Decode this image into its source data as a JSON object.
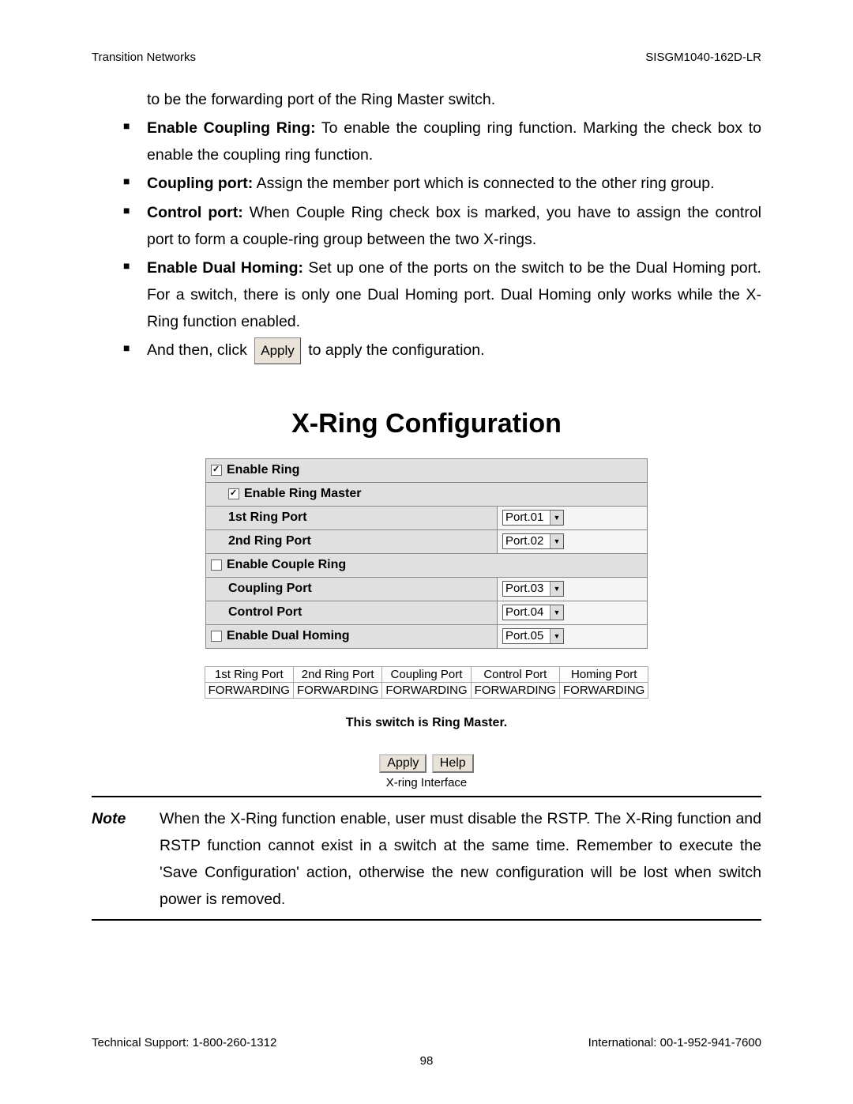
{
  "header": {
    "left": "Transition Networks",
    "right": "SISGM1040-162D-LR"
  },
  "intro": "to be the forwarding port of the Ring Master switch.",
  "bullets": [
    {
      "bold": "Enable Coupling Ring:",
      "rest": " To enable the coupling ring function. Marking the check box to enable the coupling ring function."
    },
    {
      "bold": "Coupling port:",
      "rest": " Assign the member port which is connected to the other ring group."
    },
    {
      "bold": "Control port:",
      "rest": " When Couple Ring check box is marked, you have to assign the control port to form a couple-ring group between the two X-rings."
    },
    {
      "bold": "Enable Dual Homing:",
      "rest": " Set up one of the ports on the switch to be the Dual Homing port. For a switch, there is only one Dual Homing port. Dual Homing only works while the X-Ring function enabled."
    }
  ],
  "last_bullet_pre": "And then, click ",
  "apply_label": "Apply",
  "last_bullet_post": " to apply the configuration.",
  "config": {
    "title": "X-Ring Configuration",
    "rows": {
      "enable_ring": "Enable Ring",
      "enable_ring_master": "Enable Ring Master",
      "first_ring_port": "1st Ring Port",
      "second_ring_port": "2nd Ring Port",
      "enable_couple_ring": "Enable Couple Ring",
      "coupling_port": "Coupling Port",
      "control_port": "Control Port",
      "enable_dual_homing": "Enable Dual Homing"
    },
    "values": {
      "port1": "Port.01",
      "port2": "Port.02",
      "port3": "Port.03",
      "port4": "Port.04",
      "port5": "Port.05"
    },
    "checks": {
      "enable_ring": true,
      "enable_ring_master": true,
      "enable_couple_ring": false,
      "enable_dual_homing": false
    }
  },
  "status": {
    "headers": [
      "1st Ring Port",
      "2nd Ring Port",
      "Coupling Port",
      "Control Port",
      "Homing Port"
    ],
    "values": [
      "FORWARDING",
      "FORWARDING",
      "FORWARDING",
      "FORWARDING",
      "FORWARDING"
    ]
  },
  "master_line": "This switch is Ring Master.",
  "buttons": {
    "apply": "Apply",
    "help": "Help"
  },
  "caption": "X-ring Interface",
  "note": {
    "label": "Note",
    "text": "When the X-Ring function enable, user must disable the RSTP. The X-Ring function and RSTP function cannot exist in a switch at the same time. Remember to execute the 'Save Configuration' action, otherwise the new configuration will be lost when switch power is removed."
  },
  "footer": {
    "left": "Technical Support: 1-800-260-1312",
    "right": "International: 00-1-952-941-7600",
    "page": "98"
  }
}
